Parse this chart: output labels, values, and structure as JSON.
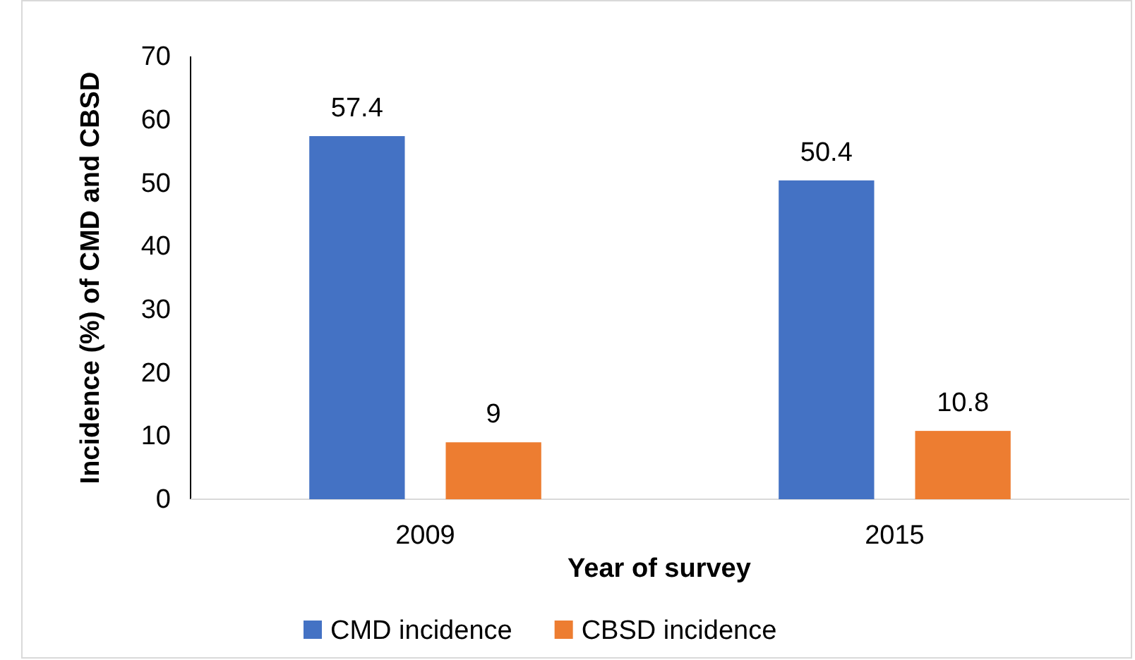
{
  "chart_data": {
    "type": "bar",
    "categories": [
      "2009",
      "2015"
    ],
    "series": [
      {
        "name": "CMD incidence",
        "color": "#4472c4",
        "values": [
          57.4,
          50.4
        ]
      },
      {
        "name": "CBSD incidence",
        "color": "#ed7d31",
        "values": [
          9,
          10.8
        ]
      }
    ],
    "xlabel": "Year of survey",
    "ylabel": "Incidence (%) of CMD and CBSD",
    "ylim": [
      0,
      70
    ],
    "yticks": [
      0,
      10,
      20,
      30,
      40,
      50,
      60,
      70
    ],
    "data_labels": true,
    "grid": false,
    "legend": "bottom"
  }
}
